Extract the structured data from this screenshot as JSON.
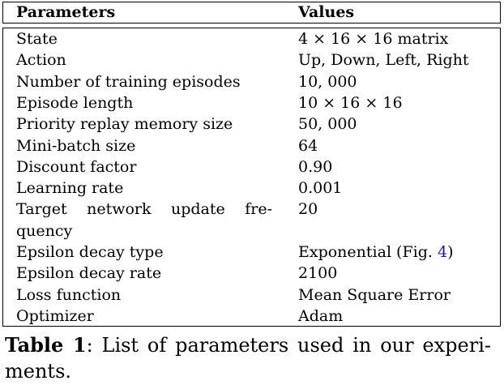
{
  "table": {
    "headers": [
      "Parameters",
      "Values"
    ],
    "rows": [
      {
        "param": "State",
        "value": "4 × 16 × 16 matrix"
      },
      {
        "param": "Action",
        "value": "Up, Down, Left, Right"
      },
      {
        "param": "Number of training episodes",
        "value": "10, 000"
      },
      {
        "param": "Episode length",
        "value": "10 × 16 × 16"
      },
      {
        "param": "Priority replay memory size",
        "value": "50, 000"
      },
      {
        "param": "Mini-batch size",
        "value": "64"
      },
      {
        "param": "Discount factor",
        "value": "0.90"
      },
      {
        "param": "Learning rate",
        "value": "0.001"
      },
      {
        "param_line1": "Target network update fre-",
        "param_line2": "quency",
        "value": "20"
      },
      {
        "param": "Epsilon decay type",
        "value_prefix": "Exponential (Fig. ",
        "value_ref": "4",
        "value_suffix": ")"
      },
      {
        "param": "Epsilon decay rate",
        "value": "2100"
      },
      {
        "param": "Loss function",
        "value": "Mean Square Error"
      },
      {
        "param": "Optimizer",
        "value": "Adam"
      }
    ]
  },
  "caption": {
    "label": "Table 1",
    "text_line1": ": List of parameters used in our experi-",
    "text_line2": "ments."
  }
}
